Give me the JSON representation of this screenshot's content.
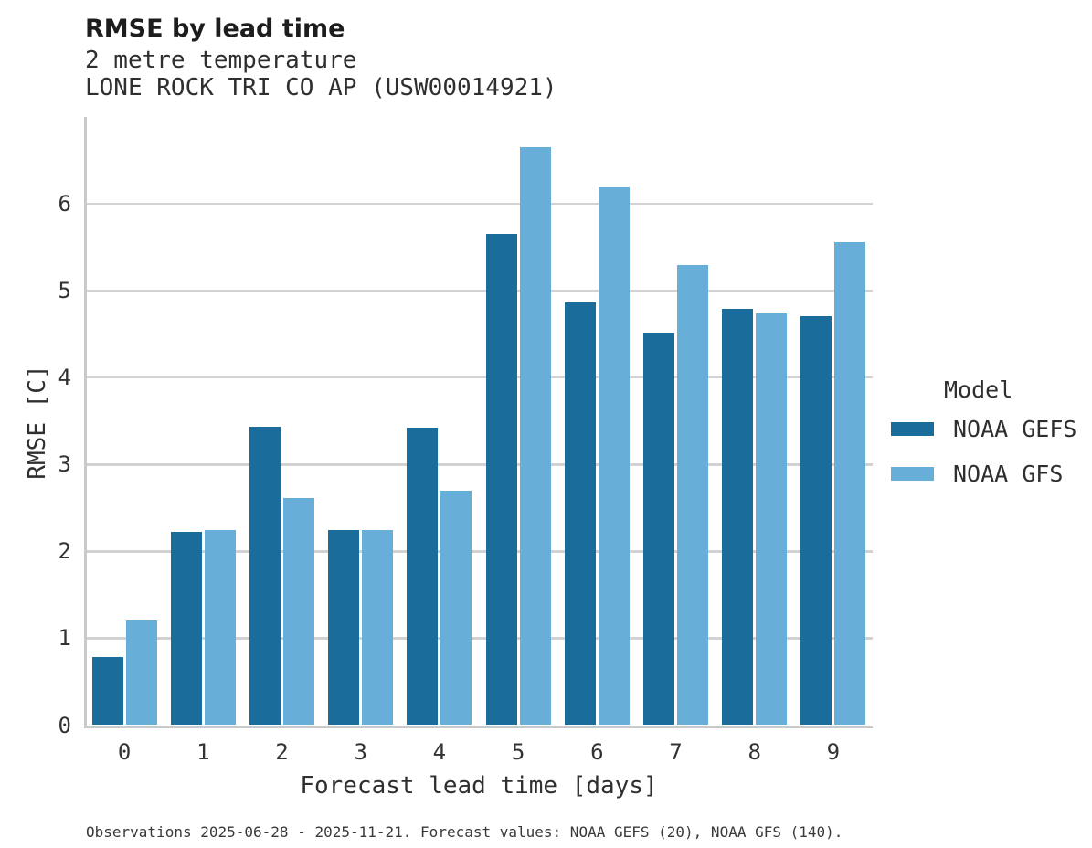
{
  "header": {
    "title": "RMSE by lead time",
    "subtitle_line1": "2 metre temperature",
    "subtitle_line2": "LONE ROCK TRI CO AP (USW00014921)"
  },
  "legend": {
    "title": "Model",
    "items": [
      {
        "label": "NOAA GEFS",
        "color": "#1a6c9b"
      },
      {
        "label": "NOAA GFS",
        "color": "#67aed8"
      }
    ]
  },
  "footer": {
    "caption": "Observations 2025-06-28 - 2025-11-21. Forecast values: NOAA GEFS (20), NOAA GFS (140)."
  },
  "colors": {
    "gefs_bar": "#1a6c9b",
    "gfs_bar": "#67aed8",
    "gridline": "#d2d2d2",
    "axis_line": "#c9c9c9",
    "title_text": "#1d1d1d",
    "body_text": "#2f2f2f"
  },
  "chart_data": {
    "type": "bar",
    "title": "RMSE by lead time",
    "subtitle": [
      "2 metre temperature",
      "LONE ROCK TRI CO AP (USW00014921)"
    ],
    "xlabel": "Forecast lead time [days]",
    "ylabel": "RMSE [C]",
    "categories": [
      "0",
      "1",
      "2",
      "3",
      "4",
      "5",
      "6",
      "7",
      "8",
      "9"
    ],
    "series": [
      {
        "name": "NOAA GEFS",
        "color": "#1a6c9b",
        "values": [
          0.78,
          2.22,
          3.43,
          2.25,
          3.42,
          5.65,
          4.86,
          4.52,
          4.79,
          4.71
        ]
      },
      {
        "name": "NOAA GFS",
        "color": "#67aed8",
        "values": [
          1.2,
          2.25,
          2.61,
          2.25,
          2.7,
          6.65,
          6.19,
          5.3,
          4.74,
          5.56
        ]
      }
    ],
    "ylim": [
      0,
      7
    ],
    "yticks": [
      0,
      1,
      2,
      3,
      4,
      5,
      6
    ],
    "grid": true,
    "legend_position": "right",
    "caption": "Observations 2025-06-28 - 2025-11-21. Forecast values: NOAA GEFS (20), NOAA GFS (140)."
  }
}
